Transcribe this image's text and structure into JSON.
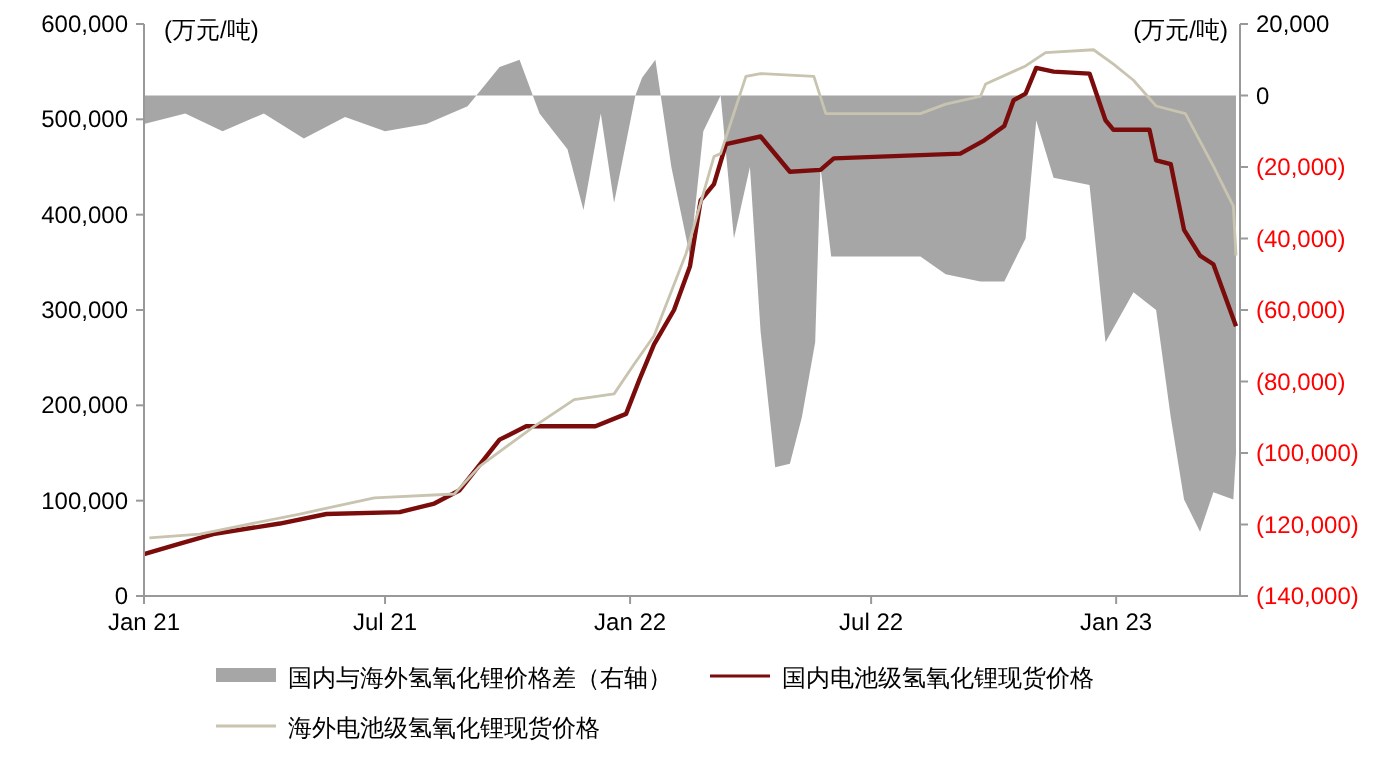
{
  "chart_data": {
    "type": "line",
    "ylabel": "(万元/吨)",
    "y2label": "(万元/吨)",
    "xlim": [
      "2021-01-01",
      "2023-04-04"
    ],
    "xticks": [
      {
        "value": "2021-01-01",
        "label": "Jan 21"
      },
      {
        "value": "2021-07-01",
        "label": "Jul 21"
      },
      {
        "value": "2022-01-01",
        "label": "Jan 22"
      },
      {
        "value": "2022-07-01",
        "label": "Jul 22"
      },
      {
        "value": "2023-01-01",
        "label": "Jan 23"
      }
    ],
    "ylim": [
      0,
      600000
    ],
    "yticks": [
      {
        "value": 0,
        "label": "0"
      },
      {
        "value": 100000,
        "label": "100,000"
      },
      {
        "value": 200000,
        "label": "200,000"
      },
      {
        "value": 300000,
        "label": "300,000"
      },
      {
        "value": 400000,
        "label": "400,000"
      },
      {
        "value": 500000,
        "label": "500,000"
      },
      {
        "value": 600000,
        "label": "600,000"
      }
    ],
    "y2lim": [
      -140000,
      20000
    ],
    "y2ticks": [
      {
        "value": -140000,
        "label": "(140,000)"
      },
      {
        "value": -120000,
        "label": "(120,000)"
      },
      {
        "value": -100000,
        "label": "(100,000)"
      },
      {
        "value": -80000,
        "label": "(80,000)"
      },
      {
        "value": -60000,
        "label": "(60,000)"
      },
      {
        "value": -40000,
        "label": "(40,000)"
      },
      {
        "value": -20000,
        "label": "(20,000)"
      },
      {
        "value": 0,
        "label": "0"
      },
      {
        "value": 20000,
        "label": "20,000"
      }
    ],
    "grid": false,
    "legend": "bottom",
    "series": [
      {
        "name": "国内与海外氢氧化锂价格差（右轴）",
        "type": "area",
        "axis": "y2",
        "color": "#a6a6a6",
        "x": [
          "2021-01-01",
          "2021-02-01",
          "2021-03-01",
          "2021-04-01",
          "2021-05-01",
          "2021-06-01",
          "2021-07-01",
          "2021-08-01",
          "2021-09-01",
          "2021-09-25",
          "2021-10-10",
          "2021-10-25",
          "2021-11-15",
          "2021-11-27",
          "2021-12-10",
          "2021-12-20",
          "2022-01-05",
          "2022-01-10",
          "2022-01-20",
          "2022-02-01",
          "2022-02-15",
          "2022-02-25",
          "2022-03-10",
          "2022-03-20",
          "2022-04-01",
          "2022-04-09",
          "2022-04-20",
          "2022-05-01",
          "2022-05-10",
          "2022-05-20",
          "2022-05-24",
          "2022-06-01",
          "2022-08-07",
          "2022-08-26",
          "2022-09-21",
          "2022-10-09",
          "2022-10-25",
          "2022-11-02",
          "2022-11-15",
          "2022-12-12",
          "2022-12-24",
          "2023-01-14",
          "2023-01-31",
          "2023-02-11",
          "2023-02-21",
          "2023-03-05",
          "2023-03-15",
          "2023-03-30",
          "2023-04-01"
        ],
        "values": [
          -8000,
          -5000,
          -10000,
          -5000,
          -12000,
          -6000,
          -10000,
          -8000,
          -3000,
          8000,
          10000,
          -5000,
          -15000,
          -32000,
          -5000,
          -30000,
          0,
          5000,
          10000,
          -20000,
          -45000,
          -10000,
          0,
          -40000,
          -20000,
          -66000,
          -104000,
          -103000,
          -90000,
          -69000,
          -20000,
          -45000,
          -45000,
          -50000,
          -52000,
          -52000,
          -40000,
          -7000,
          -23000,
          -25000,
          -69000,
          -55000,
          -60000,
          -90000,
          -113000,
          -122000,
          -111000,
          -113000,
          -100000
        ]
      },
      {
        "name": "国内电池级氢氧化锂现货价格",
        "color": "#7b0c0c",
        "x": [
          "2021-01-01",
          "2021-01-28",
          "2021-02-22",
          "2021-04-13",
          "2021-05-18",
          "2021-07-12",
          "2021-08-07",
          "2021-08-26",
          "2021-09-25",
          "2021-10-15",
          "2021-12-06",
          "2021-12-29",
          "2022-01-08",
          "2022-01-19",
          "2022-02-03",
          "2022-02-15",
          "2022-02-23",
          "2022-03-05",
          "2022-03-14",
          "2022-04-09",
          "2022-05-01",
          "2022-05-24",
          "2022-06-03",
          "2022-09-06",
          "2022-09-24",
          "2022-10-09",
          "2022-10-16",
          "2022-10-25",
          "2022-11-02",
          "2022-11-15",
          "2022-12-12",
          "2022-12-24",
          "2022-12-30",
          "2023-01-26",
          "2023-01-31",
          "2023-02-11",
          "2023-02-21",
          "2023-03-05",
          "2023-03-15",
          "2023-04-01"
        ],
        "values": [
          44000,
          55000,
          65000,
          76000,
          86000,
          88000,
          97000,
          111000,
          164000,
          178000,
          178000,
          191000,
          227000,
          264000,
          300000,
          346000,
          415000,
          432000,
          474000,
          482000,
          445000,
          447000,
          459000,
          464000,
          478000,
          493000,
          520000,
          527000,
          554000,
          550000,
          548000,
          499000,
          489000,
          489000,
          457000,
          453000,
          384000,
          357000,
          348000,
          283000
        ]
      },
      {
        "name": "海外电池级氢氧化锂现货价格",
        "color": "#c8c4b0",
        "x": [
          "2021-01-05",
          "2021-02-12",
          "2021-04-28",
          "2021-06-23",
          "2021-08-22",
          "2021-09-10",
          "2021-10-21",
          "2021-11-20",
          "2021-12-20",
          "2022-01-04",
          "2022-01-19",
          "2022-02-12",
          "2022-03-05",
          "2022-03-10",
          "2022-03-29",
          "2022-04-09",
          "2022-05-19",
          "2022-05-28",
          "2022-08-07",
          "2022-08-26",
          "2022-09-21",
          "2022-09-25",
          "2022-10-25",
          "2022-11-09",
          "2022-12-15",
          "2022-12-30",
          "2023-01-14",
          "2023-01-31",
          "2023-02-22",
          "2023-03-15",
          "2023-03-30",
          "2023-04-01"
        ],
        "values": [
          61000,
          65000,
          86000,
          103000,
          107000,
          136000,
          178000,
          206000,
          212000,
          243000,
          273000,
          359000,
          461000,
          464000,
          545000,
          548000,
          545000,
          506000,
          506000,
          516000,
          524000,
          537000,
          556000,
          570000,
          573000,
          558000,
          541000,
          514000,
          506000,
          451000,
          409000,
          357000
        ]
      }
    ]
  }
}
